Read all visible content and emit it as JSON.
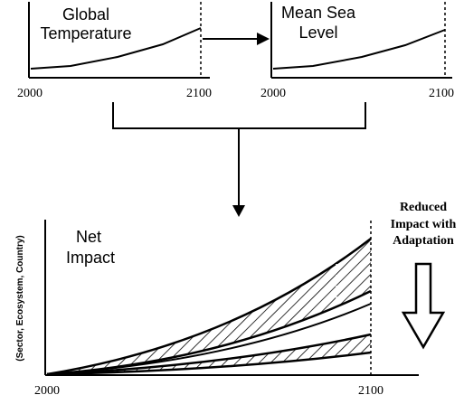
{
  "panels": {
    "global_temperature": {
      "title_line1": "Global",
      "title_line2": "Temperature",
      "x_start": "2000",
      "x_end": "2100"
    },
    "mean_sea_level": {
      "title_line1": "Mean Sea",
      "title_line2": "Level",
      "x_start": "2000",
      "x_end": "2100"
    },
    "net_impact": {
      "title_line1": "Net",
      "title_line2": "Impact",
      "y_label": "(Sector, Ecosystem, Country)",
      "x_start": "2000",
      "x_end": "2100"
    }
  },
  "adaptation_note": {
    "line1": "Reduced",
    "line2": "Impact with",
    "line3": "Adaptation"
  },
  "colors": {
    "ink": "#000000",
    "background": "#ffffff"
  },
  "icons": [
    "arrow-right-icon",
    "arrow-down-icon",
    "hollow-down-arrow-icon"
  ]
}
